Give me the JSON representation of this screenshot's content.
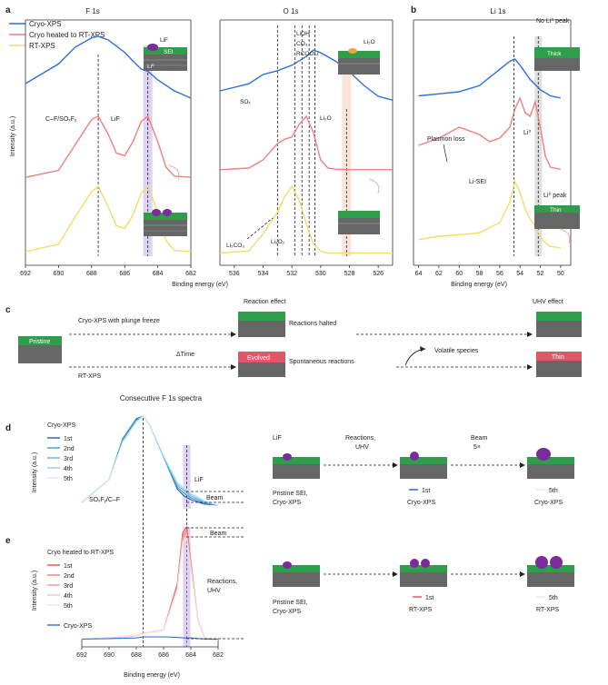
{
  "panel_labels": {
    "a": "a",
    "b": "b",
    "c": "c",
    "d": "d",
    "e": "e"
  },
  "colors": {
    "cryo": "#2f6fd6",
    "heated": "#ef7f7f",
    "rt": "#f2dc6a",
    "lif_band": "#b79ce6",
    "li2o_band": "#f6c2a8",
    "li0_band": "#b8b8b8",
    "sei_green": "#2e9e4a",
    "evolved_red": "#e0576a",
    "lif_dot": "#7a2c9a",
    "consec": [
      "#1f5fbf",
      "#3a9ad9",
      "#58b8d8",
      "#8fd0e6",
      "#d8ecf4"
    ],
    "consec_e": [
      "#e8504f",
      "#ef7a7a",
      "#f39a9a",
      "#f6c0c0",
      "#f8e0e0"
    ]
  },
  "legend_a": [
    "Cryo-XPS",
    "Cryo heated to RT-XPS",
    "RT-XPS"
  ],
  "chart_data": [
    {
      "type": "line",
      "panel": "a",
      "title": "F 1s",
      "xlabel": "",
      "ylabel": "Intensity (a.u.)",
      "xlim": [
        692,
        682
      ],
      "x_ticks": [
        "692",
        "690",
        "688",
        "686",
        "684",
        "682"
      ],
      "annotations": [
        "C–F/SOₓFᵧ",
        "LiF"
      ],
      "series": [
        {
          "name": "Cryo-XPS",
          "x": [
            692,
            690,
            689,
            688,
            687.6,
            687,
            686,
            685.5,
            685,
            684.6,
            684,
            683,
            682
          ],
          "values": [
            0.35,
            0.62,
            0.85,
            0.98,
            1.0,
            0.95,
            0.78,
            0.66,
            0.55,
            0.52,
            0.4,
            0.25,
            0.15
          ]
        },
        {
          "name": "Cryo heated to RT-XPS",
          "x": [
            692,
            690,
            689,
            688,
            687.6,
            687,
            686.5,
            686,
            685.5,
            685,
            684.6,
            684,
            683.5,
            683,
            682
          ],
          "values": [
            0.04,
            0.15,
            0.55,
            0.95,
            1.0,
            0.72,
            0.42,
            0.38,
            0.6,
            0.92,
            1.0,
            0.6,
            0.2,
            0.06,
            0.04
          ]
        },
        {
          "name": "RT-XPS",
          "x": [
            692,
            690,
            689,
            688,
            687.6,
            687,
            686.5,
            686,
            685.5,
            685,
            684.6,
            684,
            683.5,
            683,
            682
          ],
          "values": [
            0.04,
            0.15,
            0.55,
            0.92,
            1.0,
            0.7,
            0.42,
            0.38,
            0.58,
            0.9,
            1.0,
            0.62,
            0.2,
            0.06,
            0.04
          ]
        }
      ]
    },
    {
      "type": "line",
      "panel": "a",
      "title": "O 1s",
      "xlabel": "Binding energy (eV)",
      "xlim": [
        537,
        525
      ],
      "x_ticks": [
        "536",
        "534",
        "532",
        "530",
        "528",
        "526"
      ],
      "annotations": [
        "LiOH",
        "CO₃",
        "RCOOLi",
        "SOₓ",
        "Li₂O",
        "Li₂CO₃",
        "Li₂O₂"
      ],
      "series": [
        {
          "name": "Cryo-XPS",
          "x": [
            537,
            535,
            534,
            533,
            532,
            531,
            530.5,
            530,
            529,
            528,
            527,
            526,
            525
          ],
          "values": [
            0.25,
            0.38,
            0.55,
            0.62,
            0.72,
            0.88,
            1.0,
            0.95,
            0.8,
            0.6,
            0.35,
            0.15,
            0.08
          ]
        },
        {
          "name": "Cryo heated to RT-XPS",
          "x": [
            537,
            535,
            534,
            533,
            532.5,
            532,
            531.5,
            531,
            530.5,
            530,
            529.5,
            529,
            528,
            526,
            525
          ],
          "values": [
            0.02,
            0.05,
            0.2,
            0.5,
            0.58,
            0.62,
            0.85,
            1.0,
            0.7,
            0.2,
            0.05,
            0.03,
            0.02,
            0.02,
            0.02
          ]
        },
        {
          "name": "RT-XPS",
          "x": [
            537,
            535,
            534,
            533,
            532.5,
            532,
            531.5,
            531,
            530.5,
            530,
            529.5,
            529,
            528,
            526,
            525
          ],
          "values": [
            0.02,
            0.05,
            0.3,
            0.62,
            0.85,
            1.0,
            0.8,
            0.45,
            0.15,
            0.05,
            0.02,
            0.02,
            0.02,
            0.02,
            0.02
          ]
        }
      ]
    },
    {
      "type": "line",
      "panel": "b",
      "title": "Li 1s",
      "xlabel": "Binding energy (eV)",
      "xlim": [
        64.5,
        49
      ],
      "x_ticks": [
        "64",
        "62",
        "60",
        "58",
        "56",
        "54",
        "52",
        "50"
      ],
      "annotations": [
        "No Li⁰ peak",
        "Plasmon loss",
        "Li⁰",
        "Li-SEI",
        "Li⁰ peak"
      ],
      "series": [
        {
          "name": "Cryo-XPS",
          "x": [
            64,
            62,
            60,
            58,
            56,
            55,
            54.5,
            54,
            53,
            52,
            51,
            50
          ],
          "values": [
            0.1,
            0.15,
            0.2,
            0.35,
            0.75,
            0.95,
            1.0,
            0.85,
            0.5,
            0.25,
            0.1,
            0.05
          ]
        },
        {
          "name": "Cryo heated to RT-XPS",
          "x": [
            64,
            62,
            60,
            58,
            57,
            56,
            55,
            54.5,
            54,
            53.5,
            53,
            52.5,
            52,
            51.5,
            51,
            50
          ],
          "values": [
            0.35,
            0.45,
            0.6,
            0.5,
            0.4,
            0.45,
            0.6,
            0.85,
            1.0,
            0.8,
            0.75,
            0.95,
            0.6,
            0.2,
            0.05,
            0.02
          ]
        },
        {
          "name": "RT-XPS",
          "x": [
            64,
            62,
            60,
            58,
            56,
            55,
            54.5,
            54,
            53.5,
            53,
            52.5,
            52,
            51.5,
            51,
            50
          ],
          "values": [
            0.15,
            0.2,
            0.22,
            0.25,
            0.4,
            0.7,
            1.0,
            0.85,
            0.6,
            0.45,
            0.35,
            0.2,
            0.1,
            0.05,
            0.03
          ]
        }
      ]
    },
    {
      "type": "line",
      "panel": "d",
      "title": "Consecutive F 1s spectra",
      "ylabel": "Intensity (a.u.)",
      "xlim": [
        692,
        682
      ],
      "annotations": [
        "SOₓFᵧ/C–F",
        "LiF",
        "Beam"
      ],
      "series": [
        {
          "name": "1st",
          "x": [
            692,
            690,
            689,
            688,
            687.5,
            687,
            686,
            685,
            684.5,
            684,
            683,
            682
          ],
          "values": [
            0.05,
            0.3,
            0.75,
            0.97,
            1.0,
            0.9,
            0.55,
            0.2,
            0.12,
            0.08,
            0.03,
            0.02
          ]
        },
        {
          "name": "2nd",
          "x": [
            692,
            690,
            689,
            688,
            687.5,
            687,
            686,
            685,
            684.5,
            684,
            683,
            682
          ],
          "values": [
            0.05,
            0.3,
            0.74,
            0.96,
            1.0,
            0.9,
            0.55,
            0.22,
            0.15,
            0.1,
            0.04,
            0.02
          ]
        },
        {
          "name": "3rd",
          "x": [
            692,
            690,
            689,
            688,
            687.5,
            687,
            686,
            685,
            684.5,
            684,
            683,
            682
          ],
          "values": [
            0.05,
            0.3,
            0.73,
            0.95,
            1.0,
            0.9,
            0.55,
            0.24,
            0.18,
            0.12,
            0.05,
            0.02
          ]
        },
        {
          "name": "4th",
          "x": [
            692,
            690,
            689,
            688,
            687.5,
            687,
            686,
            685,
            684.5,
            684,
            683,
            682
          ],
          "values": [
            0.05,
            0.3,
            0.72,
            0.94,
            1.0,
            0.9,
            0.56,
            0.26,
            0.2,
            0.14,
            0.06,
            0.02
          ]
        },
        {
          "name": "5th",
          "x": [
            692,
            690,
            689,
            688,
            687.5,
            687,
            686,
            685,
            684.5,
            684,
            683,
            682
          ],
          "values": [
            0.05,
            0.3,
            0.71,
            0.93,
            1.0,
            0.9,
            0.57,
            0.28,
            0.22,
            0.16,
            0.07,
            0.02
          ]
        }
      ]
    },
    {
      "type": "line",
      "panel": "e",
      "title": "",
      "xlabel": "Binding energy (eV)",
      "ylabel": "Intensity (a.u.)",
      "xlim": [
        692,
        682
      ],
      "x_ticks": [
        "692",
        "690",
        "688",
        "686",
        "684",
        "682"
      ],
      "annotations": [
        "Beam",
        "Reactions,",
        "UHV"
      ],
      "series": [
        {
          "name": "1st",
          "x": [
            692,
            690,
            688,
            687.5,
            687,
            686,
            685,
            684.6,
            684.3,
            684,
            683.5,
            683,
            682
          ],
          "values": [
            0.02,
            0.03,
            0.05,
            0.07,
            0.08,
            0.1,
            0.5,
            0.95,
            1.0,
            0.7,
            0.2,
            0.03,
            0.01
          ]
        },
        {
          "name": "2nd",
          "x": [
            692,
            690,
            688,
            687.5,
            687,
            686,
            685,
            684.6,
            684.3,
            684,
            683.5,
            683,
            682
          ],
          "values": [
            0.02,
            0.03,
            0.05,
            0.07,
            0.08,
            0.1,
            0.48,
            0.92,
            0.97,
            0.68,
            0.2,
            0.03,
            0.01
          ]
        },
        {
          "name": "3rd",
          "x": [
            692,
            690,
            688,
            687.5,
            687,
            686,
            685,
            684.6,
            684.3,
            684,
            683.5,
            683,
            682
          ],
          "values": [
            0.02,
            0.03,
            0.05,
            0.07,
            0.08,
            0.1,
            0.47,
            0.9,
            0.95,
            0.66,
            0.2,
            0.03,
            0.01
          ]
        },
        {
          "name": "4th",
          "x": [
            692,
            690,
            688,
            687.5,
            687,
            686,
            685,
            684.6,
            684.3,
            684,
            683.5,
            683,
            682
          ],
          "values": [
            0.02,
            0.03,
            0.05,
            0.07,
            0.08,
            0.1,
            0.46,
            0.88,
            0.93,
            0.65,
            0.2,
            0.03,
            0.01
          ]
        },
        {
          "name": "5th",
          "x": [
            692,
            690,
            688,
            687.5,
            687,
            686,
            685,
            684.6,
            684.3,
            684,
            683.5,
            683,
            682
          ],
          "values": [
            0.02,
            0.03,
            0.05,
            0.07,
            0.08,
            0.1,
            0.45,
            0.86,
            0.9,
            0.64,
            0.2,
            0.03,
            0.01
          ]
        },
        {
          "name": "Cryo-XPS",
          "x": [
            692,
            690,
            688,
            687.5,
            687,
            686,
            685,
            684.5,
            684,
            683,
            682
          ],
          "values": [
            0.02,
            0.025,
            0.03,
            0.04,
            0.04,
            0.04,
            0.035,
            0.03,
            0.03,
            0.02,
            0.02
          ]
        }
      ]
    }
  ],
  "legend_d_title": "Cryo-XPS",
  "legend_d": [
    "1st",
    "2nd",
    "3rd",
    "4th",
    "5th"
  ],
  "legend_e_title": "Cryo heated to RT-XPS",
  "legend_e": [
    "1st",
    "2nd",
    "3rd",
    "4th",
    "5th"
  ],
  "legend_e_extra": "Cryo-XPS",
  "inset_labels": {
    "lif": "LiF",
    "sei": "SEI",
    "li0": "Li⁰",
    "li2o": "Li₂O",
    "thick": "Thick",
    "thin": "Thin"
  },
  "panel_c": {
    "top_line": "Cryo-XPS with plunge freeze",
    "bottom_line": "RT-XPS",
    "delta": "ΔTime",
    "reaction_effect": "Reaction effect",
    "uhv_effect": "UHV effect",
    "halted": "Reactions halted",
    "spontaneous": "Spontaneous reactions",
    "volatile": "Volatile species",
    "pristine": "Pristine",
    "evolved": "Evolved",
    "thin": "Thin"
  },
  "panel_d_right": {
    "lif": "LiF",
    "reactions": "Reactions,",
    "uhv": "UHV",
    "beam": "Beam",
    "beam_times": "5×",
    "pristine1": "Pristine SEI,",
    "pristine2": "Cryo-XPS",
    "first": "1st",
    "first_sub": "Cryo-XPS",
    "fifth": "5th",
    "fifth_sub": "Cryo-XPS"
  },
  "panel_e_right": {
    "pristine1": "Pristine SEI,",
    "pristine2": "Cryo-XPS",
    "first": "1st",
    "first_sub": "RT-XPS",
    "fifth": "5th",
    "fifth_sub": "RT-XPS"
  }
}
